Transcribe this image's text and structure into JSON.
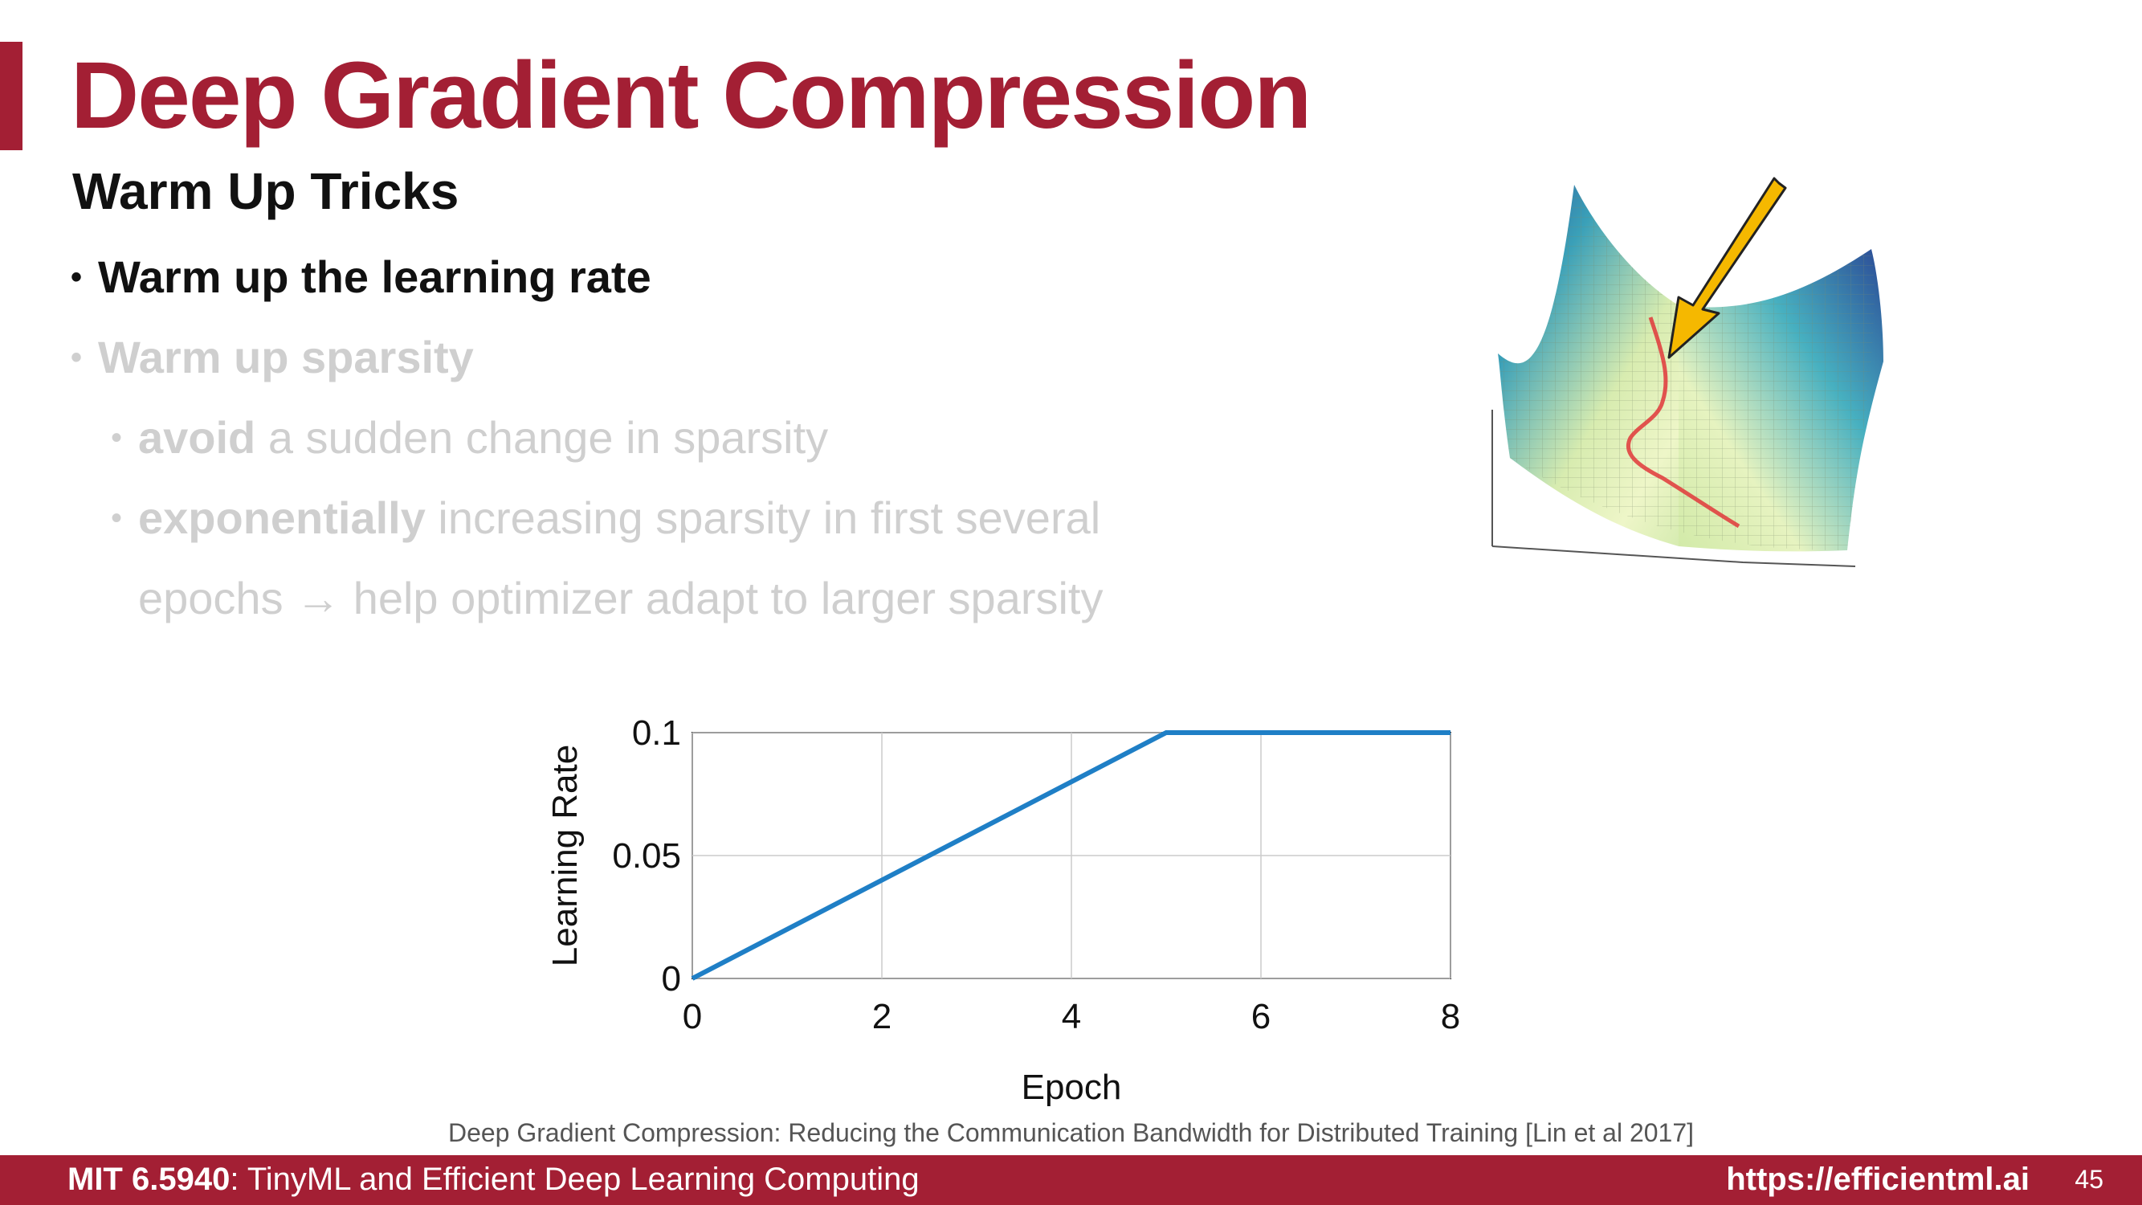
{
  "slide": {
    "title": "Deep Gradient Compression",
    "subtitle": "Warm Up Tricks",
    "bullets": [
      {
        "text": "Warm up the learning rate"
      },
      {
        "text": "Warm up sparsity"
      }
    ],
    "sub_bullets": [
      {
        "bold": "avoid",
        "rest": " a sudden change in sparsity"
      },
      {
        "bold": "exponentially",
        "rest": " increasing sparsity in first several"
      }
    ],
    "continuation": "epochs → help optimizer adapt to larger sparsity",
    "bullet_glyph": "•",
    "citation": "Deep Gradient Compression: Reducing the Communication Bandwidth for Distributed Training [Lin et al 2017]"
  },
  "footer": {
    "course_code": "MIT 6.5940",
    "course_name": ": TinyML and Efficient Deep Learning Computing",
    "url": "https://efficientml.ai",
    "page_number": "45"
  },
  "colors": {
    "accent": "#a31f34",
    "line": "#1f7fc6",
    "faded_text": "#cfcfcf",
    "arrow": "#f5b800"
  },
  "chart_data": {
    "type": "line",
    "xlabel": "Epoch",
    "ylabel": "Learning Rate",
    "xlim": [
      0,
      8
    ],
    "ylim": [
      0,
      0.1
    ],
    "xticks": [
      "0",
      "2",
      "4",
      "6",
      "8"
    ],
    "yticks": [
      "0",
      "0.05",
      "0.1"
    ],
    "grid": true,
    "series": [
      {
        "x": [
          0,
          5,
          8
        ],
        "y": [
          0,
          0.1,
          0.1
        ]
      }
    ]
  }
}
